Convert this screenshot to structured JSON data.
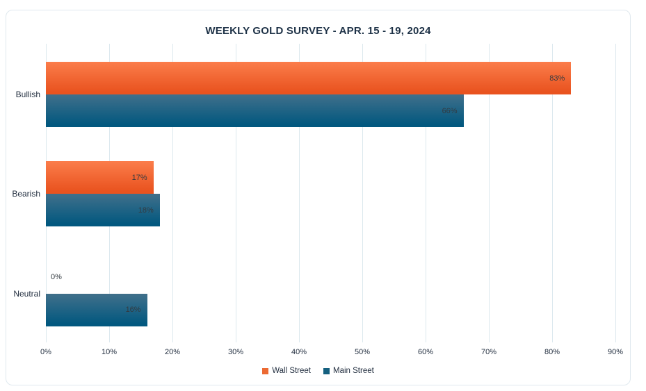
{
  "title": "WEEKLY GOLD SURVEY - APR. 15 - 19, 2024",
  "chart_data": {
    "type": "bar",
    "orientation": "horizontal",
    "title": "WEEKLY GOLD SURVEY - APR. 15 - 19, 2024",
    "categories": [
      "Bullish",
      "Bearish",
      "Neutral"
    ],
    "series": [
      {
        "name": "Wall Street",
        "values": [
          83,
          17,
          0
        ],
        "data_labels": [
          "83%",
          "17%",
          "0%"
        ],
        "color_top": "#fb7d4b",
        "color_bottom": "#e9531f",
        "legend_color": "#ec6a33"
      },
      {
        "name": "Main Street",
        "values": [
          66,
          18,
          16
        ],
        "data_labels": [
          "66%",
          "18%",
          "16%"
        ],
        "color_top": "#41708b",
        "color_bottom": "#02587f",
        "legend_color": "#15607f"
      }
    ],
    "xlabel": "",
    "ylabel": "",
    "xlim": [
      0,
      90
    ],
    "tick_labels": [
      "0%",
      "10%",
      "20%",
      "30%",
      "40%",
      "50%",
      "60%",
      "70%",
      "80%",
      "90%"
    ],
    "grid": true,
    "legend_position": "bottom"
  },
  "colors": {
    "grid": "#dce8ee",
    "frame_border": "#dfe8ee",
    "title_text": "#1e3247",
    "axis_text": "#243041",
    "data_label_text": "#333a40",
    "background": "#ffffff"
  }
}
